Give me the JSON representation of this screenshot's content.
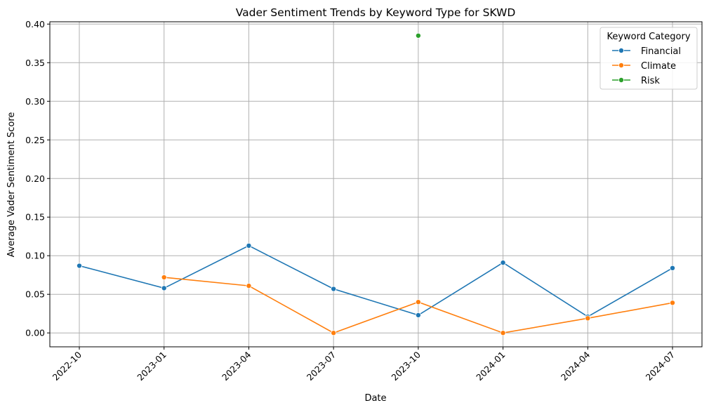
{
  "chart_data": {
    "type": "line",
    "title": "Vader Sentiment Trends by Keyword Type for SKWD",
    "xlabel": "Date",
    "ylabel": "Average Vader Sentiment Score",
    "ylim": [
      -0.018,
      0.403
    ],
    "yticks": [
      "0.00",
      "0.05",
      "0.10",
      "0.15",
      "0.20",
      "0.25",
      "0.30",
      "0.35",
      "0.40"
    ],
    "ytick_values": [
      0,
      0.05,
      0.1,
      0.15,
      0.2,
      0.25,
      0.3,
      0.35,
      0.4
    ],
    "xticks": [
      "2022-10",
      "2023-01",
      "2023-04",
      "2023-07",
      "2023-10",
      "2024-01",
      "2024-04",
      "2024-07"
    ],
    "grid": true,
    "legend": {
      "title": "Keyword Category",
      "placement": "top-right"
    },
    "series": [
      {
        "name": "Financial",
        "color": "#1f77b4",
        "x": [
          "2022-10",
          "2023-01",
          "2023-04",
          "2023-07",
          "2023-10",
          "2024-01",
          "2024-04",
          "2024-07"
        ],
        "values": [
          0.087,
          0.058,
          0.113,
          0.057,
          0.023,
          0.091,
          0.021,
          0.084
        ]
      },
      {
        "name": "Climate",
        "color": "#ff7f0e",
        "x": [
          "2023-01",
          "2023-04",
          "2023-07",
          "2023-10",
          "2024-01",
          "2024-04",
          "2024-07"
        ],
        "values": [
          0.072,
          0.061,
          0.0,
          0.04,
          0.0,
          0.019,
          0.039
        ]
      },
      {
        "name": "Risk",
        "color": "#2ca02c",
        "x": [
          "2023-10"
        ],
        "values": [
          0.385
        ]
      }
    ]
  }
}
